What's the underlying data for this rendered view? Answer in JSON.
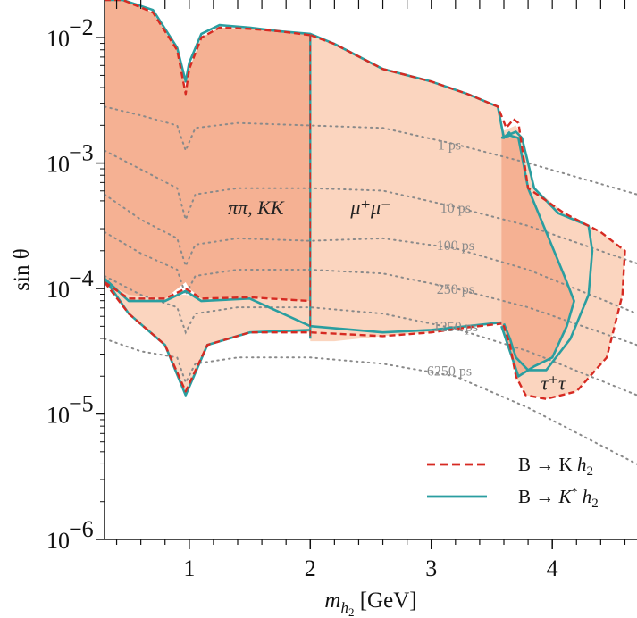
{
  "chart_data": {
    "type": "area",
    "xlabel": "m_h2 [GeV]",
    "xlabel_main": "m",
    "xlabel_sub": "h",
    "xlabel_subsub": "2",
    "xlabel_unit": " [GeV]",
    "ylabel": "sin θ",
    "xlim": [
      0.3,
      4.7
    ],
    "ylim_log10": [
      -6,
      -1.7
    ],
    "y_scale": "log",
    "x_ticks": [
      1,
      2,
      3,
      4
    ],
    "x_tick_labels": [
      "1",
      "2",
      "3",
      "4"
    ],
    "y_ticks_log10": [
      -6,
      -5,
      -4,
      -3,
      -2
    ],
    "y_tick_labels": [
      "10",
      "10",
      "10",
      "10",
      "10"
    ],
    "y_tick_exponents": [
      "−6",
      "−5",
      "−4",
      "−3",
      "−2"
    ],
    "legend": {
      "placement": "lower-right",
      "entries": [
        {
          "label_prefix": "B → K ",
          "label_italic": "h",
          "label_sub": "2",
          "style": "dashed",
          "color": "#d62a22"
        },
        {
          "label_prefix": "B → ",
          "label_italic_pre": "K",
          "label_sup": "*",
          "label_italic": "h",
          "label_sub": "2",
          "style": "solid",
          "color": "#2a9ea0"
        }
      ]
    },
    "colors": {
      "fill_light": "#fbd5bf",
      "fill_dark": "#f5b193",
      "K_line": "#d62a22",
      "Kstar_line": "#2a9ea0",
      "contour": "#8a8a8a"
    },
    "region_labels": [
      {
        "text": "ππ, KK",
        "x": 1.55,
        "y_log10": -3.35
      },
      {
        "text": "μ⁺μ⁻",
        "x": 2.5,
        "y_log10": -3.35
      },
      {
        "text": "τ⁺τ⁻",
        "x": 4.05,
        "y_log10": -4.75
      }
    ],
    "lifetime_labels": [
      {
        "text": "1 ps",
        "x": 3.15,
        "y_log10": -2.85
      },
      {
        "text": "10 ps",
        "x": 3.2,
        "y_log10": -3.35
      },
      {
        "text": "100 ps",
        "x": 3.2,
        "y_log10": -3.65
      },
      {
        "text": "250 ps",
        "x": 3.2,
        "y_log10": -4.0
      },
      {
        "text": "1250 ps",
        "x": 3.2,
        "y_log10": -4.3
      },
      {
        "text": "6250 ps",
        "x": 3.15,
        "y_log10": -4.65
      }
    ],
    "lifetime_contours": [
      {
        "name": "1 ps",
        "x": [
          0.3,
          0.6,
          0.9,
          0.97,
          1.05,
          1.4,
          2.0,
          2.6,
          3.2,
          3.8,
          4.7
        ],
        "y_log10": [
          -2.55,
          -2.62,
          -2.7,
          -2.9,
          -2.72,
          -2.68,
          -2.7,
          -2.72,
          -2.85,
          -3.0,
          -3.25
        ]
      },
      {
        "name": "10 ps",
        "x": [
          0.3,
          0.6,
          0.9,
          0.97,
          1.05,
          1.4,
          2.0,
          2.6,
          3.2,
          3.8,
          4.7
        ],
        "y_log10": [
          -2.9,
          -3.05,
          -3.2,
          -3.45,
          -3.25,
          -3.2,
          -3.2,
          -3.22,
          -3.35,
          -3.5,
          -3.8
        ]
      },
      {
        "name": "100 ps",
        "x": [
          0.3,
          0.6,
          0.9,
          0.97,
          1.05,
          1.4,
          2.0,
          2.6,
          3.2,
          3.8,
          4.7
        ],
        "y_log10": [
          -3.25,
          -3.45,
          -3.6,
          -3.82,
          -3.65,
          -3.6,
          -3.62,
          -3.6,
          -3.68,
          -3.85,
          -4.2
        ]
      },
      {
        "name": "250 ps",
        "x": [
          0.3,
          0.6,
          0.9,
          0.97,
          1.05,
          1.4,
          2.0,
          2.6,
          3.2,
          3.8,
          4.7
        ],
        "y_log10": [
          -3.55,
          -3.72,
          -3.85,
          -4.05,
          -3.9,
          -3.85,
          -3.85,
          -3.88,
          -4.0,
          -4.15,
          -4.45
        ]
      },
      {
        "name": "1250 ps",
        "x": [
          0.3,
          0.6,
          0.9,
          0.97,
          1.05,
          1.4,
          2.0,
          2.6,
          3.2,
          3.8,
          4.7
        ],
        "y_log10": [
          -3.9,
          -4.05,
          -4.15,
          -4.35,
          -4.2,
          -4.15,
          -4.15,
          -4.2,
          -4.32,
          -4.5,
          -4.85
        ]
      },
      {
        "name": "6250 ps",
        "x": [
          0.3,
          0.6,
          0.9,
          0.97,
          1.05,
          1.4,
          2.0,
          2.6,
          3.2,
          3.8,
          4.7
        ],
        "y_log10": [
          -4.4,
          -4.5,
          -4.55,
          -4.75,
          -4.6,
          -4.55,
          -4.55,
          -4.6,
          -4.7,
          -4.95,
          -5.4
        ]
      }
    ],
    "regions": {
      "hadron_light": {
        "x": [
          0.3,
          0.5,
          0.8,
          0.97,
          1.15,
          1.5,
          2.0,
          2.0,
          1.5,
          1.15,
          0.97,
          0.8,
          0.5,
          0.3
        ],
        "y_log10": [
          -3.95,
          -4.2,
          -4.45,
          -4.82,
          -4.45,
          -4.35,
          -4.35,
          -4.1,
          -4.05,
          -4.08,
          -4.05,
          -4.05,
          -4.0,
          -3.95
        ]
      },
      "hadron_dark": {
        "x": [
          0.3,
          0.45,
          0.7,
          0.9,
          0.97,
          1.0,
          1.1,
          1.25,
          1.5,
          1.75,
          2.0,
          2.0,
          1.5,
          1.1,
          1.0,
          0.97,
          0.8,
          0.5,
          0.3
        ],
        "y_log10": [
          -1.7,
          -1.7,
          -1.8,
          -2.1,
          -2.4,
          -2.25,
          -2.0,
          -1.92,
          -1.93,
          -1.95,
          -1.98,
          -4.1,
          -4.07,
          -4.08,
          -4.0,
          -3.95,
          -4.08,
          -4.05,
          -3.95
        ]
      },
      "muon": {
        "x": [
          2.0,
          2.2,
          2.6,
          3.0,
          3.3,
          3.55,
          3.58,
          3.58,
          3.3,
          3.0,
          2.6,
          2.2,
          2.0
        ],
        "y_log10": [
          -1.98,
          -2.05,
          -2.25,
          -2.35,
          -2.45,
          -2.55,
          -2.65,
          -4.28,
          -4.31,
          -4.35,
          -4.38,
          -4.42,
          -4.42
        ],
        "K_upper_x": [
          2.0,
          2.2,
          2.6,
          3.0,
          3.3,
          3.55,
          3.7,
          3.73
        ],
        "K_upper_y_log10": [
          -1.98,
          -2.05,
          -2.25,
          -2.35,
          -2.45,
          -2.55,
          -2.7,
          -2.68
        ]
      },
      "tau_dark": {
        "x": [
          3.58,
          3.65,
          3.72,
          3.8,
          3.95,
          4.1,
          4.18,
          4.12,
          4.0,
          3.85,
          3.72,
          3.65,
          3.58
        ],
        "y_log10": [
          -2.75,
          -2.8,
          -2.8,
          -3.2,
          -3.55,
          -3.9,
          -4.1,
          -4.3,
          -4.55,
          -4.62,
          -4.7,
          -4.5,
          -4.3
        ]
      },
      "tau_light": {
        "x": [
          3.58,
          3.7,
          3.75,
          3.85,
          4.1,
          4.4,
          4.6,
          4.58,
          4.45,
          4.2,
          3.95,
          3.78,
          3.7,
          3.65,
          3.6,
          3.58
        ],
        "y_log10": [
          -2.75,
          -2.7,
          -2.8,
          -3.2,
          -3.4,
          -3.55,
          -3.7,
          -4.05,
          -4.55,
          -4.82,
          -4.88,
          -4.85,
          -4.7,
          -4.45,
          -4.3,
          -4.3
        ]
      }
    },
    "boundaries": {
      "K_dashed": [
        {
          "x": [
            0.3,
            0.45,
            0.7,
            0.9,
            0.97,
            1.0,
            1.1,
            1.25,
            1.5,
            1.75,
            2.0
          ],
          "y_log10": [
            -1.7,
            -1.7,
            -1.8,
            -2.1,
            -2.45,
            -2.25,
            -2.0,
            -1.92,
            -1.93,
            -1.95,
            -1.98
          ]
        },
        {
          "x": [
            2.0,
            2.2,
            2.6,
            3.0,
            3.3,
            3.55,
            3.62,
            3.68,
            3.72,
            3.8,
            4.1,
            4.4,
            4.6,
            4.58,
            4.45,
            4.2,
            3.95,
            3.78,
            3.7,
            3.65,
            3.6,
            3.58
          ],
          "y_log10": [
            -1.98,
            -2.05,
            -2.25,
            -2.35,
            -2.45,
            -2.55,
            -2.72,
            -2.65,
            -2.68,
            -3.2,
            -3.4,
            -3.55,
            -3.7,
            -4.05,
            -4.55,
            -4.82,
            -4.88,
            -4.85,
            -4.7,
            -4.45,
            -4.3,
            -4.3
          ]
        },
        {
          "x": [
            0.3,
            0.5,
            0.8,
            0.97,
            1.15,
            1.5,
            2.0,
            2.6,
            3.0,
            3.3,
            3.58
          ],
          "y_log10": [
            -3.95,
            -4.2,
            -4.45,
            -4.82,
            -4.45,
            -4.35,
            -4.35,
            -4.38,
            -4.35,
            -4.31,
            -4.28
          ]
        },
        {
          "x": [
            0.3,
            0.5,
            0.8,
            0.97,
            1.1,
            1.5,
            2.0
          ],
          "y_log10": [
            -3.95,
            -4.08,
            -4.08,
            -4.0,
            -4.08,
            -4.07,
            -4.1
          ]
        }
      ],
      "Kstar_solid": [
        {
          "x": [
            0.3,
            0.45,
            0.7,
            0.9,
            0.97,
            1.0,
            1.1,
            1.25,
            1.5,
            1.75,
            2.0,
            2.2,
            2.6,
            3.0,
            3.3,
            3.55,
            3.6,
            3.65
          ],
          "y_log10": [
            -1.7,
            -1.7,
            -1.78,
            -2.08,
            -2.35,
            -2.2,
            -1.97,
            -1.9,
            -1.92,
            -1.95,
            -1.97,
            -2.05,
            -2.25,
            -2.35,
            -2.45,
            -2.55,
            -2.8,
            -2.75
          ]
        },
        {
          "x": [
            3.58,
            3.65,
            3.72,
            3.8,
            3.95,
            4.1,
            4.18,
            4.12,
            4.0,
            3.85,
            3.72,
            3.65,
            3.58
          ],
          "y_log10": [
            -2.8,
            -2.78,
            -2.8,
            -3.2,
            -3.55,
            -3.9,
            -4.1,
            -4.3,
            -4.55,
            -4.62,
            -4.7,
            -4.5,
            -4.3
          ]
        },
        {
          "x": [
            3.58,
            3.7,
            3.75,
            3.85,
            4.05,
            4.3,
            4.33,
            4.3,
            4.15,
            3.95,
            3.8,
            3.7,
            3.65,
            3.6
          ],
          "y_log10": [
            -2.8,
            -2.75,
            -2.8,
            -3.2,
            -3.4,
            -3.5,
            -3.7,
            -4.05,
            -4.4,
            -4.65,
            -4.65,
            -4.55,
            -4.4,
            -4.28
          ]
        },
        {
          "x": [
            0.3,
            0.5,
            0.8,
            0.97,
            1.15,
            1.5,
            2.0
          ],
          "y_log10": [
            -3.92,
            -4.2,
            -4.45,
            -4.85,
            -4.45,
            -4.35,
            -4.33
          ]
        },
        {
          "x": [
            0.3,
            0.5,
            0.8,
            0.97,
            1.1,
            1.5,
            2.0,
            2.6,
            3.0,
            3.3,
            3.58
          ],
          "y_log10": [
            -3.92,
            -4.1,
            -4.1,
            -4.02,
            -4.1,
            -4.08,
            -4.3,
            -4.35,
            -4.33,
            -4.3,
            -4.27
          ]
        }
      ],
      "divider_x": 2.0,
      "divider_y_log10": [
        -1.98,
        -4.4
      ]
    }
  }
}
